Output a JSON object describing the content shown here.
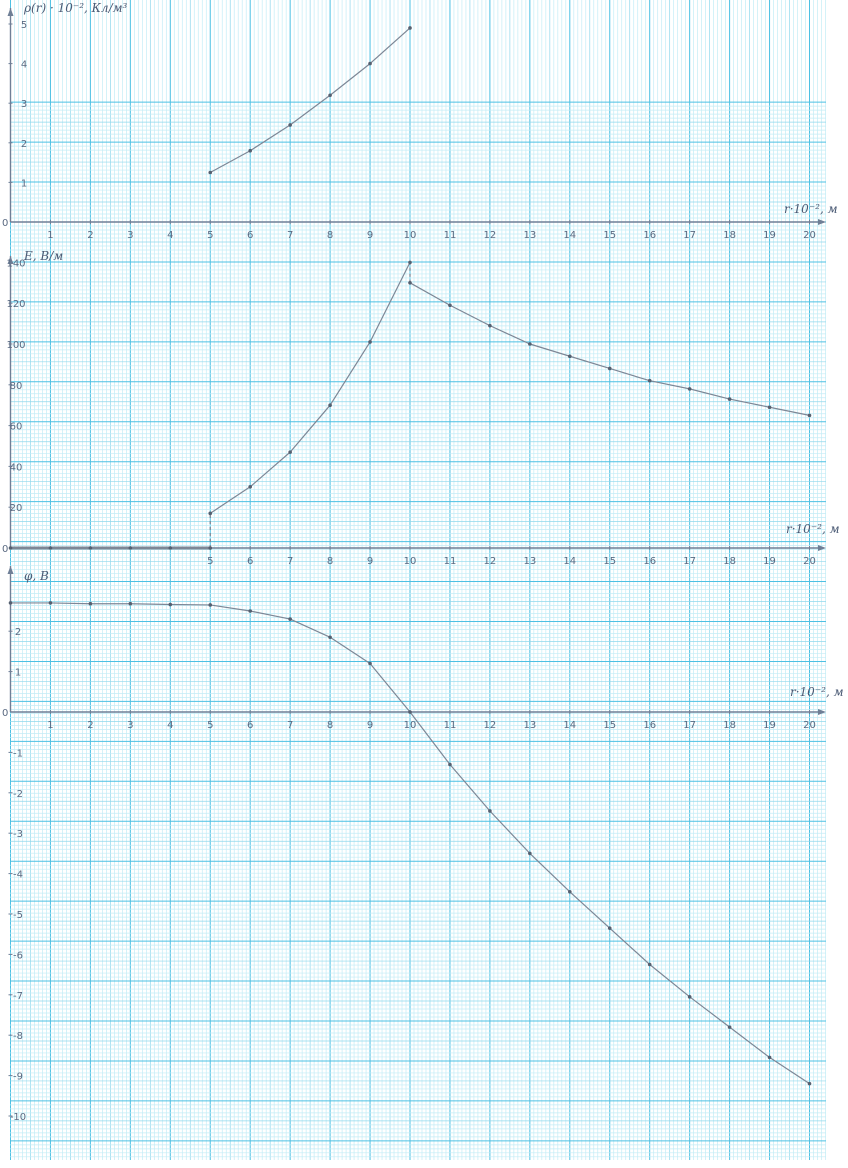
{
  "colors": {
    "paper": "#ffffff",
    "grid_fine": "#c3ecf6",
    "grid_mid": "#8fd8ec",
    "grid_major": "#4cc0e3",
    "axis": "#6f7f96",
    "curve": "#7d8796",
    "point": "#556070",
    "ink": "#5a6a82"
  },
  "chart_data": [
    {
      "type": "line",
      "title": "",
      "ylabel": "ρ(r) · 10⁻², Кл/м³",
      "xlabel": "r·10⁻², м",
      "xlim": [
        0,
        20
      ],
      "ylim": [
        0,
        5.2
      ],
      "x_ticks": [
        1,
        2,
        3,
        4,
        5,
        6,
        7,
        8,
        9,
        10,
        11,
        12,
        13,
        14,
        15,
        16,
        17,
        18,
        19,
        20
      ],
      "y_ticks": [
        1,
        2,
        3,
        4,
        5
      ],
      "grid": true,
      "series": [
        {
          "x": [
            5,
            6,
            7,
            8,
            9,
            10
          ],
          "y": [
            1.25,
            1.8,
            2.45,
            3.2,
            4.0,
            4.9
          ]
        }
      ]
    },
    {
      "type": "line",
      "title": "",
      "ylabel": "E, В/м",
      "xlabel": "r·10⁻², м",
      "xlim": [
        0,
        20
      ],
      "ylim": [
        0,
        140
      ],
      "x_ticks": [
        5,
        6,
        7,
        8,
        9,
        10,
        11,
        12,
        13,
        14,
        15,
        16,
        17,
        18,
        19,
        20
      ],
      "y_ticks": [
        20,
        40,
        60,
        80,
        100,
        120,
        140
      ],
      "grid": true,
      "series": [
        {
          "x": [
            0,
            1,
            2,
            3,
            4,
            5
          ],
          "y": [
            0,
            0,
            0,
            0,
            0,
            0
          ]
        },
        {
          "x": [
            5,
            6,
            7,
            8,
            9,
            10
          ],
          "y": [
            17,
            30,
            47,
            70,
            101,
            140
          ]
        },
        {
          "x": [
            10,
            11,
            12,
            13,
            14,
            15,
            16,
            17,
            18,
            19,
            20
          ],
          "y": [
            130,
            119,
            109,
            100,
            94,
            88,
            82,
            78,
            73,
            69,
            65
          ]
        }
      ],
      "dashed_drops": [
        {
          "x": 5,
          "y_from": 0,
          "y_to": 17
        },
        {
          "x": 10,
          "y_from": 130,
          "y_to": 140
        }
      ]
    },
    {
      "type": "line",
      "title": "",
      "ylabel": "φ, В",
      "xlabel": "r·10⁻², м",
      "xlim": [
        0,
        20
      ],
      "ylim": [
        -10,
        2.8
      ],
      "x_ticks": [
        1,
        2,
        3,
        4,
        5,
        6,
        7,
        8,
        9,
        10,
        11,
        12,
        13,
        14,
        15,
        16,
        17,
        18,
        19,
        20
      ],
      "y_ticks": [
        2,
        1,
        -1,
        -2,
        -3,
        -4,
        -5,
        -6,
        -7,
        -8,
        -9,
        -10
      ],
      "grid": true,
      "series": [
        {
          "x": [
            0,
            1,
            2,
            3,
            4,
            5,
            6,
            7,
            8,
            9,
            10,
            11,
            12,
            13,
            14,
            15,
            16,
            17,
            18,
            19,
            20
          ],
          "y": [
            2.7,
            2.7,
            2.68,
            2.68,
            2.66,
            2.65,
            2.5,
            2.3,
            1.85,
            1.2,
            0,
            -1.3,
            -2.45,
            -3.5,
            -4.45,
            -5.35,
            -6.25,
            -7.05,
            -7.8,
            -8.55,
            -9.2
          ]
        }
      ]
    }
  ]
}
